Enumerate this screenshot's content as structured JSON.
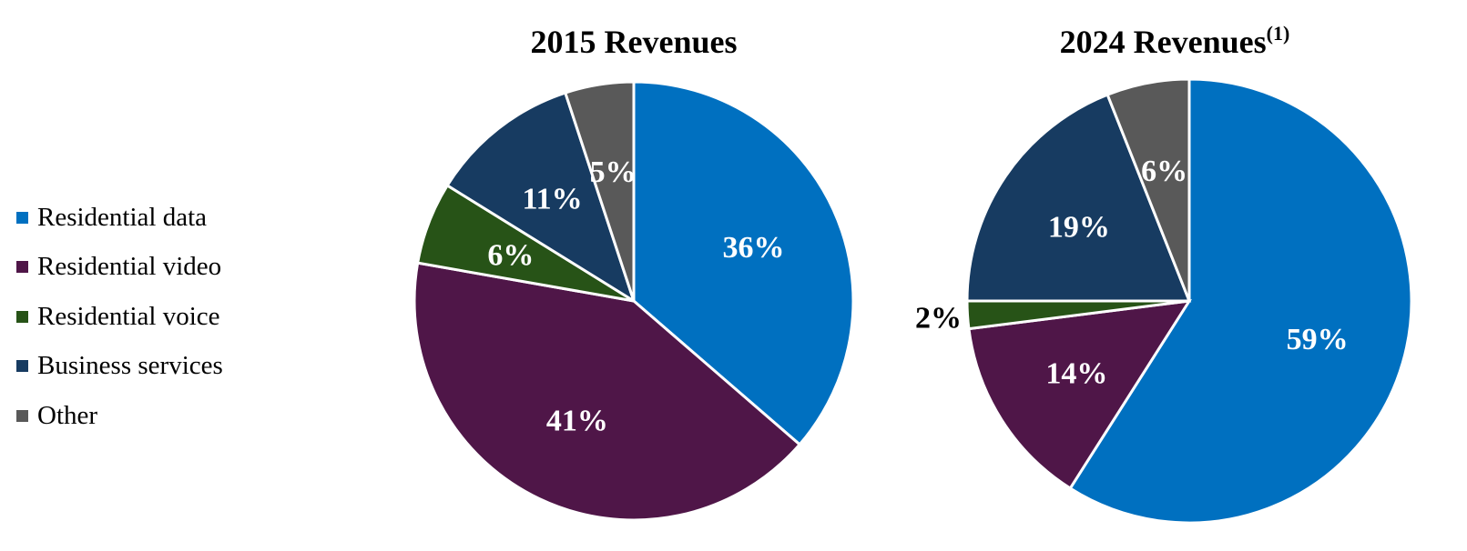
{
  "chart_data": [
    {
      "type": "pie",
      "title": "2015 Revenues",
      "title_sup": "",
      "categories": [
        "Residential data",
        "Residential video",
        "Residential voice",
        "Business services",
        "Other"
      ],
      "values": [
        36,
        41,
        6,
        11,
        5
      ],
      "labels": [
        "36%",
        "41%",
        "6%",
        "11%",
        "5%"
      ],
      "colors": [
        "#0070C0",
        "#4F1648",
        "#275317",
        "#173B61",
        "#595959"
      ],
      "start": "top, clockwise"
    },
    {
      "type": "pie",
      "title": "2024 Revenues",
      "title_sup": "(1)",
      "categories": [
        "Residential data",
        "Residential video",
        "Residential voice",
        "Business services",
        "Other"
      ],
      "values": [
        59,
        14,
        2,
        19,
        6
      ],
      "labels": [
        "59%",
        "14%",
        "2%",
        "19%",
        "6%"
      ],
      "colors": [
        "#0070C0",
        "#4F1648",
        "#275317",
        "#173B61",
        "#595959"
      ],
      "start": "top, clockwise"
    }
  ],
  "legend": {
    "placement": "left",
    "items": [
      {
        "label": "Residential data",
        "color": "#0070C0"
      },
      {
        "label": "Residential video",
        "color": "#4F1648"
      },
      {
        "label": "Residential voice",
        "color": "#275317"
      },
      {
        "label": "Business services",
        "color": "#173B61"
      },
      {
        "label": "Other",
        "color": "#595959"
      }
    ]
  }
}
